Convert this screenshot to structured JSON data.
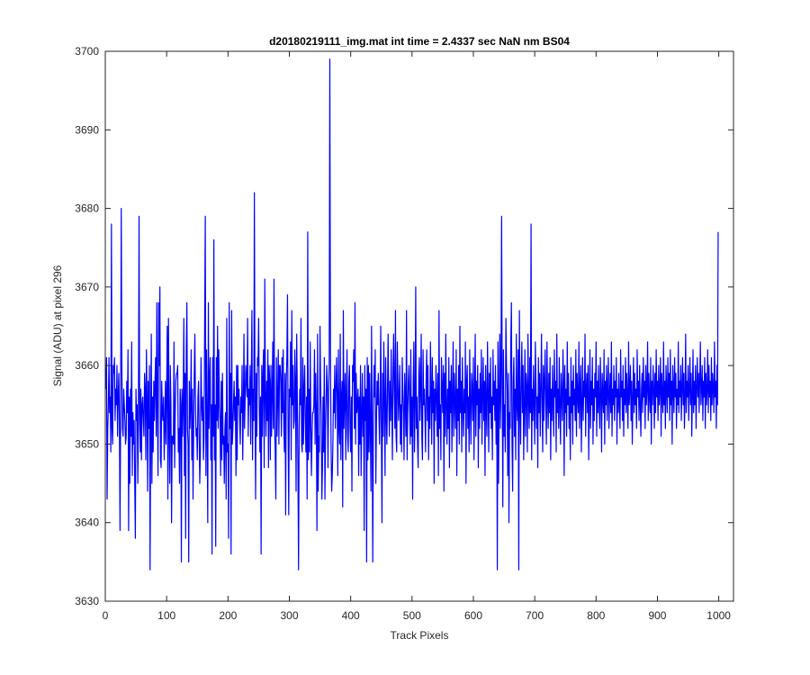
{
  "chart_data": {
    "type": "line",
    "title": "d20180219111_img.mat int time = 2.4337 sec  NaN nm BS04",
    "xlabel": "Track Pixels",
    "ylabel": "Signal (ADU) at pixel 296",
    "xlim": [
      0,
      1024
    ],
    "ylim": [
      3630,
      3700
    ],
    "xticks": [
      0,
      100,
      200,
      300,
      400,
      500,
      600,
      700,
      800,
      900,
      1000
    ],
    "yticks": [
      3630,
      3640,
      3650,
      3660,
      3670,
      3680,
      3690,
      3700
    ],
    "grid": false,
    "legend": "none",
    "series": [
      {
        "color": "#0000ff",
        "x_start": 1,
        "x_step": 1,
        "values": [
          3657,
          3661,
          3643,
          3652,
          3655,
          3661,
          3654,
          3656,
          3649,
          3678,
          3652,
          3650,
          3660,
          3659,
          3661,
          3653,
          3657,
          3655,
          3660,
          3651,
          3656,
          3659,
          3653,
          3639,
          3654,
          3680,
          3660,
          3652,
          3651,
          3657,
          3655,
          3653,
          3650,
          3651,
          3658,
          3654,
          3662,
          3639,
          3656,
          3645,
          3657,
          3651,
          3663,
          3646,
          3654,
          3650,
          3653,
          3645,
          3638,
          3657,
          3653,
          3655,
          3645,
          3653,
          3679,
          3654,
          3649,
          3657,
          3648,
          3655,
          3656,
          3653,
          3651,
          3659,
          3657,
          3648,
          3662,
          3656,
          3644,
          3658,
          3652,
          3660,
          3634,
          3652,
          3664,
          3645,
          3656,
          3649,
          3658,
          3653,
          3658,
          3661,
          3651,
          3668,
          3655,
          3646,
          3668,
          3660,
          3670,
          3648,
          3647,
          3658,
          3654,
          3653,
          3656,
          3648,
          3652,
          3658,
          3650,
          3657,
          3665,
          3643,
          3666,
          3652,
          3645,
          3660,
          3655,
          3640,
          3651,
          3651,
          3650,
          3663,
          3647,
          3654,
          3658,
          3659,
          3659,
          3660,
          3649,
          3652,
          3645,
          3657,
          3655,
          3635,
          3657,
          3651,
          3655,
          3666,
          3646,
          3659,
          3638,
          3662,
          3668,
          3652,
          3650,
          3635,
          3658,
          3652,
          3655,
          3662,
          3648,
          3657,
          3643,
          3652,
          3659,
          3664,
          3655,
          3651,
          3652,
          3648,
          3656,
          3658,
          3651,
          3645,
          3649,
          3661,
          3655,
          3653,
          3656,
          3648,
          3651,
          3666,
          3679,
          3646,
          3662,
          3652,
          3640,
          3668,
          3652,
          3658,
          3661,
          3648,
          3655,
          3636,
          3661,
          3651,
          3676,
          3648,
          3655,
          3637,
          3661,
          3653,
          3665,
          3652,
          3662,
          3655,
          3653,
          3646,
          3658,
          3648,
          3659,
          3650,
          3651,
          3645,
          3652,
          3654,
          3643,
          3666,
          3649,
          3650,
          3638,
          3668,
          3652,
          3659,
          3636,
          3667,
          3650,
          3652,
          3655,
          3658,
          3653,
          3656,
          3646,
          3660,
          3648,
          3660,
          3655,
          3657,
          3653,
          3650,
          3656,
          3654,
          3660,
          3648,
          3654,
          3664,
          3652,
          3656,
          3660,
          3658,
          3656,
          3666,
          3651,
          3657,
          3655,
          3660,
          3650,
          3658,
          3667,
          3648,
          3657,
          3653,
          3682,
          3656,
          3643,
          3659,
          3651,
          3661,
          3660,
          3666,
          3655,
          3649,
          3656,
          3636,
          3660,
          3651,
          3659,
          3662,
          3647,
          3671,
          3656,
          3651,
          3658,
          3653,
          3662,
          3647,
          3660,
          3658,
          3648,
          3660,
          3651,
          3656,
          3663,
          3652,
          3671,
          3652,
          3649,
          3643,
          3661,
          3651,
          3656,
          3662,
          3650,
          3660,
          3660,
          3658,
          3651,
          3661,
          3654,
          3662,
          3652,
          3649,
          3659,
          3641,
          3658,
          3661,
          3669,
          3652,
          3641,
          3657,
          3656,
          3663,
          3648,
          3667,
          3655,
          3660,
          3652,
          3653,
          3662,
          3658,
          3644,
          3664,
          3656,
          3647,
          3634,
          3652,
          3657,
          3655,
          3666,
          3650,
          3649,
          3661,
          3650,
          3657,
          3660,
          3653,
          3649,
          3656,
          3643,
          3677,
          3648,
          3657,
          3649,
          3663,
          3653,
          3646,
          3651,
          3654,
          3654,
          3655,
          3662,
          3650,
          3659,
          3654,
          3639,
          3664,
          3644,
          3651,
          3649,
          3665,
          3657,
          3654,
          3643,
          3647,
          3656,
          3649,
          3661,
          3643,
          3652,
          3656,
          3660,
          3657,
          3647,
          3657,
          3660,
          3699,
          3662,
          3650,
          3644,
          3646,
          3650,
          3657,
          3654,
          3660,
          3652,
          3657,
          3661,
          3656,
          3646,
          3662,
          3652,
          3650,
          3664,
          3648,
          3656,
          3658,
          3642,
          3667,
          3652,
          3656,
          3659,
          3648,
          3656,
          3662,
          3651,
          3649,
          3658,
          3660,
          3652,
          3649,
          3656,
          3644,
          3660,
          3658,
          3662,
          3652,
          3668,
          3650,
          3659,
          3654,
          3655,
          3657,
          3646,
          3656,
          3650,
          3660,
          3646,
          3654,
          3659,
          3651,
          3656,
          3639,
          3660,
          3653,
          3657,
          3635,
          3661,
          3648,
          3660,
          3649,
          3659,
          3652,
          3644,
          3665,
          3652,
          3635,
          3654,
          3660,
          3656,
          3662,
          3645,
          3653,
          3658,
          3655,
          3659,
          3654,
          3650,
          3656,
          3665,
          3652,
          3640,
          3659,
          3651,
          3663,
          3656,
          3646,
          3661,
          3654,
          3650,
          3657,
          3664,
          3656,
          3651,
          3658,
          3653,
          3662,
          3655,
          3648,
          3659,
          3664,
          3657,
          3652,
          3667,
          3651,
          3649,
          3663,
          3658,
          3653,
          3656,
          3660,
          3650,
          3655,
          3649,
          3661,
          3657,
          3654,
          3648,
          3659,
          3656,
          3651,
          3667,
          3648,
          3654,
          3658,
          3660,
          3655,
          3650,
          3662,
          3651,
          3656,
          3643,
          3658,
          3663,
          3649,
          3655,
          3670,
          3652,
          3656,
          3650,
          3647,
          3659,
          3661,
          3653,
          3657,
          3664,
          3651,
          3648,
          3662,
          3655,
          3657,
          3654,
          3649,
          3658,
          3662,
          3653,
          3660,
          3648,
          3656,
          3652,
          3663,
          3657,
          3650,
          3661,
          3654,
          3658,
          3645,
          3657,
          3653,
          3660,
          3656,
          3651,
          3659,
          3646,
          3667,
          3652,
          3655,
          3648,
          3661,
          3657,
          3654,
          3660,
          3644,
          3659,
          3651,
          3664,
          3655,
          3650,
          3657,
          3652,
          3661,
          3647,
          3658,
          3654,
          3660,
          3649,
          3656,
          3663,
          3651,
          3659,
          3655,
          3652,
          3662,
          3646,
          3657,
          3653,
          3660,
          3650,
          3665,
          3654,
          3658,
          3649,
          3661,
          3655,
          3651,
          3657,
          3654,
          3663,
          3645,
          3658,
          3660,
          3652,
          3656,
          3649,
          3662,
          3655,
          3650,
          3659,
          3657,
          3653,
          3661,
          3648,
          3656,
          3664,
          3651,
          3658,
          3655,
          3660,
          3647,
          3657,
          3652,
          3659,
          3654,
          3662,
          3650,
          3656,
          3661,
          3653,
          3658,
          3646,
          3660,
          3655,
          3651,
          3663,
          3657,
          3649,
          3659,
          3654,
          3661,
          3652,
          3656,
          3648,
          3662,
          3655,
          3658,
          3653,
          3660,
          3650,
          3657,
          3634,
          3663,
          3645,
          3656,
          3664,
          3652,
          3658,
          3679,
          3657,
          3642,
          3662,
          3651,
          3655,
          3649,
          3666,
          3660,
          3657,
          3646,
          3659,
          3640,
          3654,
          3652,
          3663,
          3668,
          3650,
          3644,
          3658,
          3661,
          3651,
          3657,
          3648,
          3664,
          3655,
          3653,
          3662,
          3634,
          3667,
          3656,
          3650,
          3658,
          3663,
          3654,
          3660,
          3648,
          3655,
          3662,
          3651,
          3659,
          3657,
          3649,
          3664,
          3656,
          3652,
          3661,
          3654,
          3678,
          3648,
          3657,
          3653,
          3660,
          3655,
          3650,
          3663,
          3658,
          3652,
          3656,
          3647,
          3661,
          3654,
          3659,
          3651,
          3657,
          3664,
          3655,
          3649,
          3660,
          3653,
          3658,
          3662,
          3655,
          3650,
          3663,
          3656,
          3652,
          3659,
          3654,
          3661,
          3648,
          3657,
          3653,
          3660,
          3655,
          3651,
          3662,
          3656,
          3658,
          3649,
          3664,
          3654,
          3657,
          3652,
          3661,
          3655,
          3650,
          3659,
          3656,
          3653,
          3662,
          3658,
          3646,
          3660,
          3654,
          3657,
          3651,
          3663,
          3655,
          3659,
          3652,
          3656,
          3648,
          3661,
          3654,
          3658,
          3650,
          3660,
          3655,
          3657,
          3653,
          3662,
          3651,
          3659,
          3656,
          3654,
          3663,
          3652,
          3657,
          3660,
          3649,
          3655,
          3661,
          3653,
          3658,
          3656,
          3664,
          3651,
          3657,
          3659,
          3654,
          3660,
          3648,
          3656,
          3662,
          3652,
          3658,
          3655,
          3661,
          3650,
          3657,
          3653,
          3659,
          3656,
          3663,
          3651,
          3658,
          3654,
          3660,
          3655,
          3652,
          3661,
          3657,
          3649,
          3659,
          3656,
          3654,
          3662,
          3650,
          3658,
          3655,
          3660,
          3653,
          3657,
          3661,
          3652,
          3656,
          3659,
          3654,
          3663,
          3651,
          3657,
          3655,
          3660,
          3653,
          3658,
          3656,
          3661,
          3650,
          3657,
          3654,
          3659,
          3655,
          3652,
          3662,
          3656,
          3658,
          3653,
          3660,
          3651,
          3657,
          3655,
          3661,
          3654,
          3659,
          3656,
          3652,
          3663,
          3655,
          3657,
          3660,
          3653,
          3658,
          3650,
          3656,
          3661,
          3654,
          3659,
          3655,
          3657,
          3652,
          3662,
          3656,
          3658,
          3653,
          3660,
          3655,
          3651,
          3657,
          3659,
          3654,
          3661,
          3656,
          3658,
          3652,
          3660,
          3655,
          3657,
          3663,
          3653,
          3659,
          3656,
          3654,
          3661,
          3650,
          3658,
          3655,
          3660,
          3657,
          3652,
          3659,
          3654,
          3662,
          3656,
          3658,
          3653,
          3660,
          3655,
          3657,
          3661,
          3651,
          3659,
          3656,
          3654,
          3663,
          3655,
          3658,
          3652,
          3660,
          3657,
          3654,
          3661,
          3656,
          3659,
          3653,
          3662,
          3655,
          3658,
          3650,
          3660,
          3657,
          3654,
          3661,
          3656,
          3659,
          3652,
          3657,
          3655,
          3663,
          3654,
          3658,
          3656,
          3660,
          3653,
          3657,
          3661,
          3655,
          3659,
          3652,
          3656,
          3664,
          3654,
          3658,
          3656,
          3660,
          3653,
          3657,
          3661,
          3655,
          3659,
          3651,
          3656,
          3662,
          3654,
          3658,
          3655,
          3660,
          3652,
          3657,
          3661,
          3656,
          3659,
          3654,
          3658,
          3663,
          3655,
          3657,
          3660,
          3653,
          3658,
          3656,
          3661,
          3652,
          3659,
          3655,
          3657,
          3662,
          3654,
          3660,
          3656,
          3658,
          3653,
          3661,
          3655,
          3659,
          3657,
          3654,
          3663,
          3656,
          3658,
          3652,
          3660,
          3655,
          3677
        ]
      }
    ]
  }
}
